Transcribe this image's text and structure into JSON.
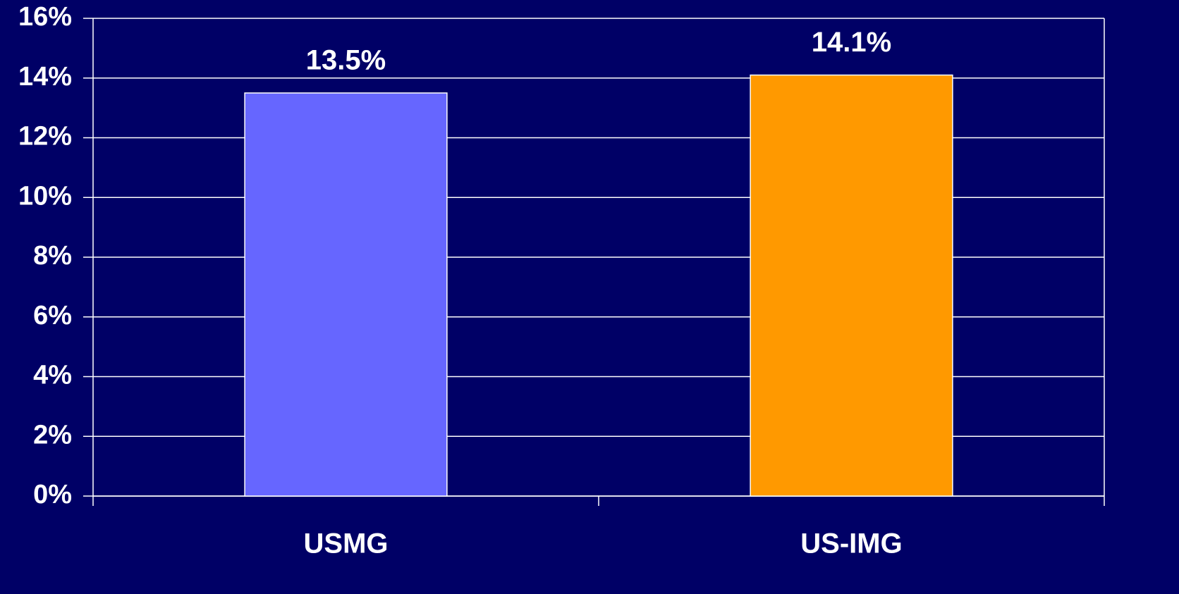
{
  "chart_data": {
    "type": "bar",
    "categories": [
      "USMG",
      "US-IMG"
    ],
    "values": [
      13.5,
      14.1
    ],
    "value_labels": [
      "13.5%",
      "14.1%"
    ],
    "colors": [
      "#6666ff",
      "#ff9900"
    ],
    "ylim": [
      0,
      16
    ],
    "yticks": [
      {
        "value": 0,
        "label": "0%"
      },
      {
        "value": 2,
        "label": "2%"
      },
      {
        "value": 4,
        "label": "4%"
      },
      {
        "value": 6,
        "label": "6%"
      },
      {
        "value": 8,
        "label": "8%"
      },
      {
        "value": 10,
        "label": "10%"
      },
      {
        "value": 12,
        "label": "12%"
      },
      {
        "value": 14,
        "label": "14%"
      },
      {
        "value": 16,
        "label": "16%"
      }
    ],
    "grid": true
  }
}
